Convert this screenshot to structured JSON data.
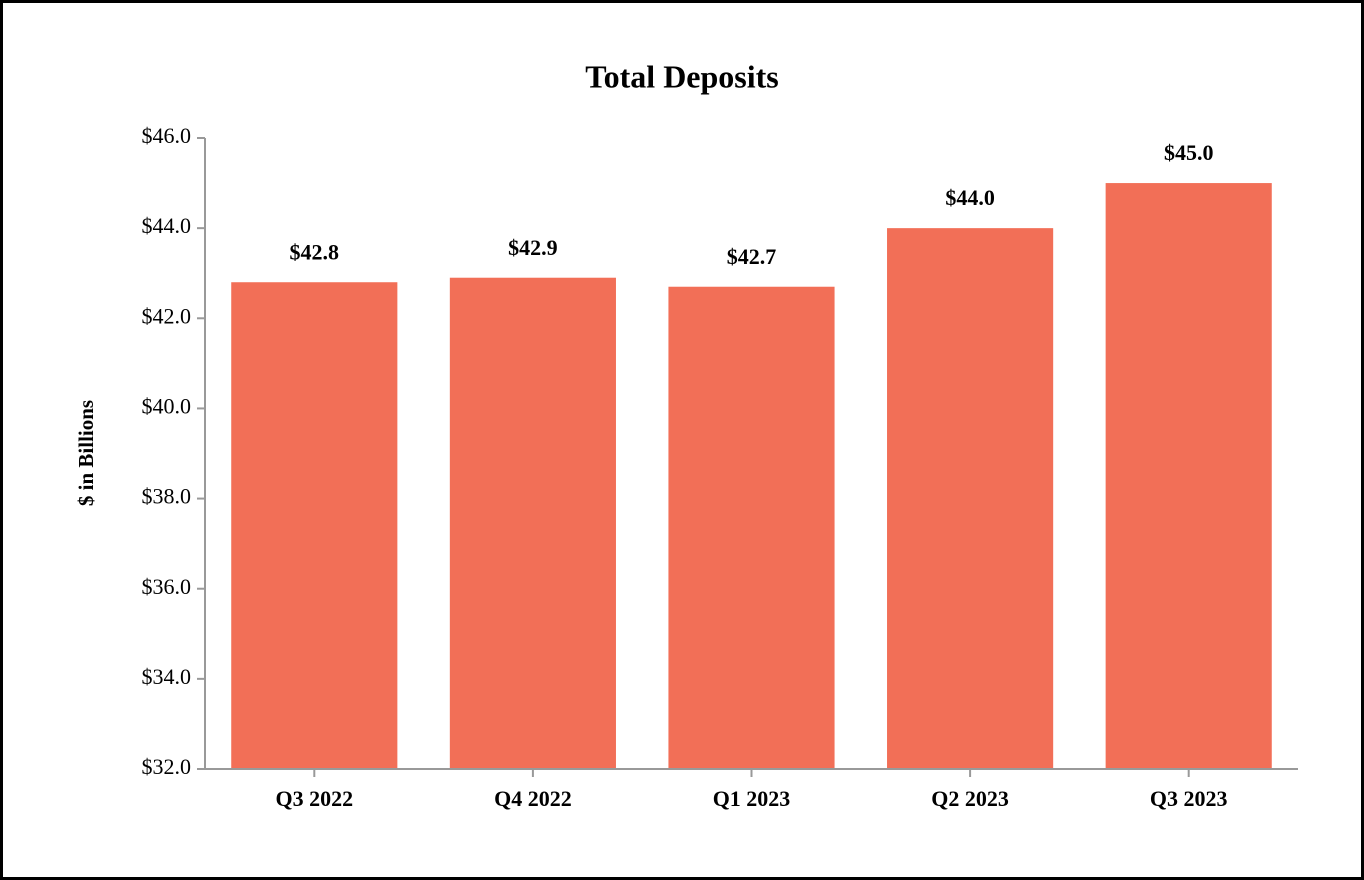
{
  "chart_data": {
    "type": "bar",
    "title": "Total Deposits",
    "y_label": "$ in Billions",
    "categories": [
      "Q3 2022",
      "Q4 2022",
      "Q1 2023",
      "Q2 2023",
      "Q3 2023"
    ],
    "values": [
      42.8,
      42.9,
      42.7,
      44.0,
      45.0
    ],
    "value_labels": [
      "$42.8",
      "$42.9",
      "$42.7",
      "$44.0",
      "$45.0"
    ],
    "color": "#f26f57",
    "ylim": [
      32,
      46
    ],
    "yticks": [
      {
        "value": 32,
        "label": "$32.0"
      },
      {
        "value": 34,
        "label": "$34.0"
      },
      {
        "value": 36,
        "label": "$36.0"
      },
      {
        "value": 38,
        "label": "$38.0"
      },
      {
        "value": 40,
        "label": "$40.0"
      },
      {
        "value": 42,
        "label": "$42.0"
      },
      {
        "value": 44,
        "label": "$44.0"
      },
      {
        "value": 46,
        "label": "$46.0"
      }
    ],
    "grid": false
  }
}
